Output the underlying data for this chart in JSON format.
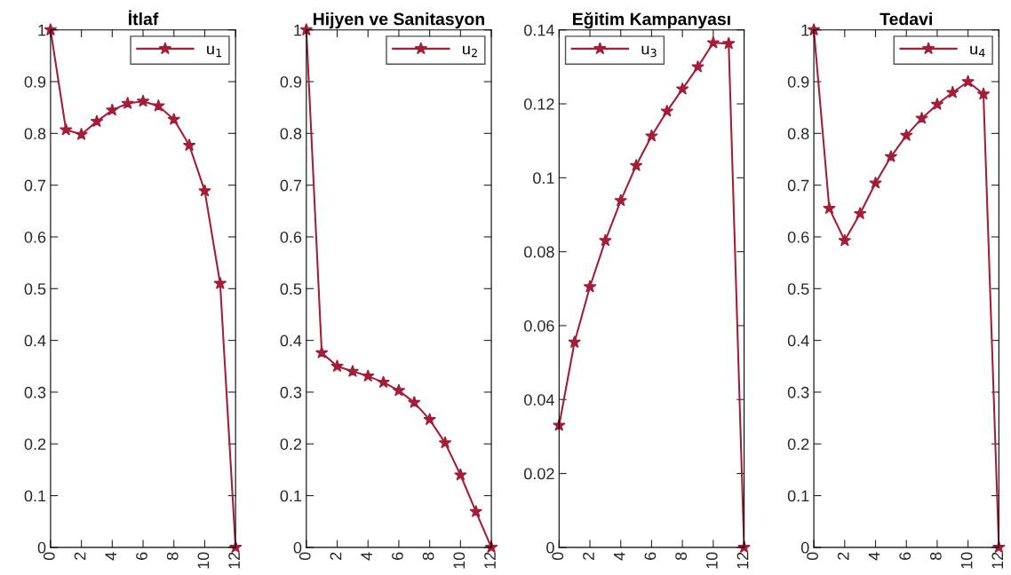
{
  "chart_data": [
    {
      "type": "line",
      "title": "İtlaf",
      "x": [
        0,
        1,
        2,
        3,
        4,
        5,
        6,
        7,
        8,
        9,
        10,
        11,
        12
      ],
      "xlim": [
        0,
        12
      ],
      "xticks": [
        0,
        2,
        4,
        6,
        8,
        10,
        12
      ],
      "ylim": [
        0,
        1
      ],
      "yticks": [
        0,
        0.1,
        0.2,
        0.3,
        0.4,
        0.5,
        0.6,
        0.7,
        0.8,
        0.9,
        1
      ],
      "marker": "star",
      "line_style": "solid",
      "legend": "top right",
      "grid": false,
      "series": [
        {
          "name": "u$_{1}$",
          "color": "#a01f3a",
          "values": [
            1,
            0.807,
            0.798,
            0.823,
            0.845,
            0.858,
            0.862,
            0.853,
            0.827,
            0.777,
            0.689,
            0.51,
            0
          ]
        }
      ]
    },
    {
      "type": "line",
      "title": "Hijyen ve Sanitasyon",
      "x": [
        0,
        1,
        2,
        3,
        4,
        5,
        6,
        7,
        8,
        9,
        10,
        11,
        12
      ],
      "xlim": [
        0,
        12
      ],
      "xticks": [
        0,
        2,
        4,
        6,
        8,
        10,
        12
      ],
      "ylim": [
        0,
        1
      ],
      "yticks": [
        0,
        0.1,
        0.2,
        0.3,
        0.4,
        0.5,
        0.6,
        0.7,
        0.8,
        0.9,
        1
      ],
      "marker": "star",
      "line_style": "solid",
      "legend": "top right",
      "grid": false,
      "series": [
        {
          "name": "u$_{2}$",
          "color": "#a01f3a",
          "values": [
            1,
            0.376,
            0.35,
            0.34,
            0.331,
            0.319,
            0.303,
            0.28,
            0.247,
            0.202,
            0.14,
            0.069,
            0
          ]
        }
      ]
    },
    {
      "type": "line",
      "title": "Eğitim Kampanyası",
      "x": [
        0,
        1,
        2,
        3,
        4,
        5,
        6,
        7,
        8,
        9,
        10,
        11,
        12
      ],
      "xlim": [
        0,
        12
      ],
      "xticks": [
        0,
        2,
        4,
        6,
        8,
        10,
        12
      ],
      "ylim": [
        0,
        0.14
      ],
      "yticks": [
        0,
        0.02,
        0.04,
        0.06,
        0.08,
        0.1,
        0.12,
        0.14
      ],
      "marker": "star",
      "line_style": "solid",
      "legend": "top left",
      "grid": false,
      "series": [
        {
          "name": "u$_{3}$",
          "color": "#a01f3a",
          "values": [
            0.033,
            0.0555,
            0.0705,
            0.083,
            0.0938,
            0.1033,
            0.1113,
            0.118,
            0.124,
            0.13,
            0.1365,
            0.1363,
            0
          ]
        }
      ]
    },
    {
      "type": "line",
      "title": "Tedavi",
      "x": [
        0,
        1,
        2,
        3,
        4,
        5,
        6,
        7,
        8,
        9,
        10,
        11,
        12
      ],
      "xlim": [
        0,
        12
      ],
      "xticks": [
        0,
        2,
        4,
        6,
        8,
        10,
        12
      ],
      "ylim": [
        0,
        1
      ],
      "yticks": [
        0,
        0.1,
        0.2,
        0.3,
        0.4,
        0.5,
        0.6,
        0.7,
        0.8,
        0.9,
        1
      ],
      "marker": "star",
      "line_style": "solid",
      "legend": "top right",
      "grid": false,
      "series": [
        {
          "name": "u$_{4}$",
          "color": "#a01f3a",
          "values": [
            1,
            0.655,
            0.593,
            0.645,
            0.704,
            0.755,
            0.796,
            0.829,
            0.856,
            0.879,
            0.9,
            0.876,
            0
          ]
        }
      ]
    }
  ]
}
